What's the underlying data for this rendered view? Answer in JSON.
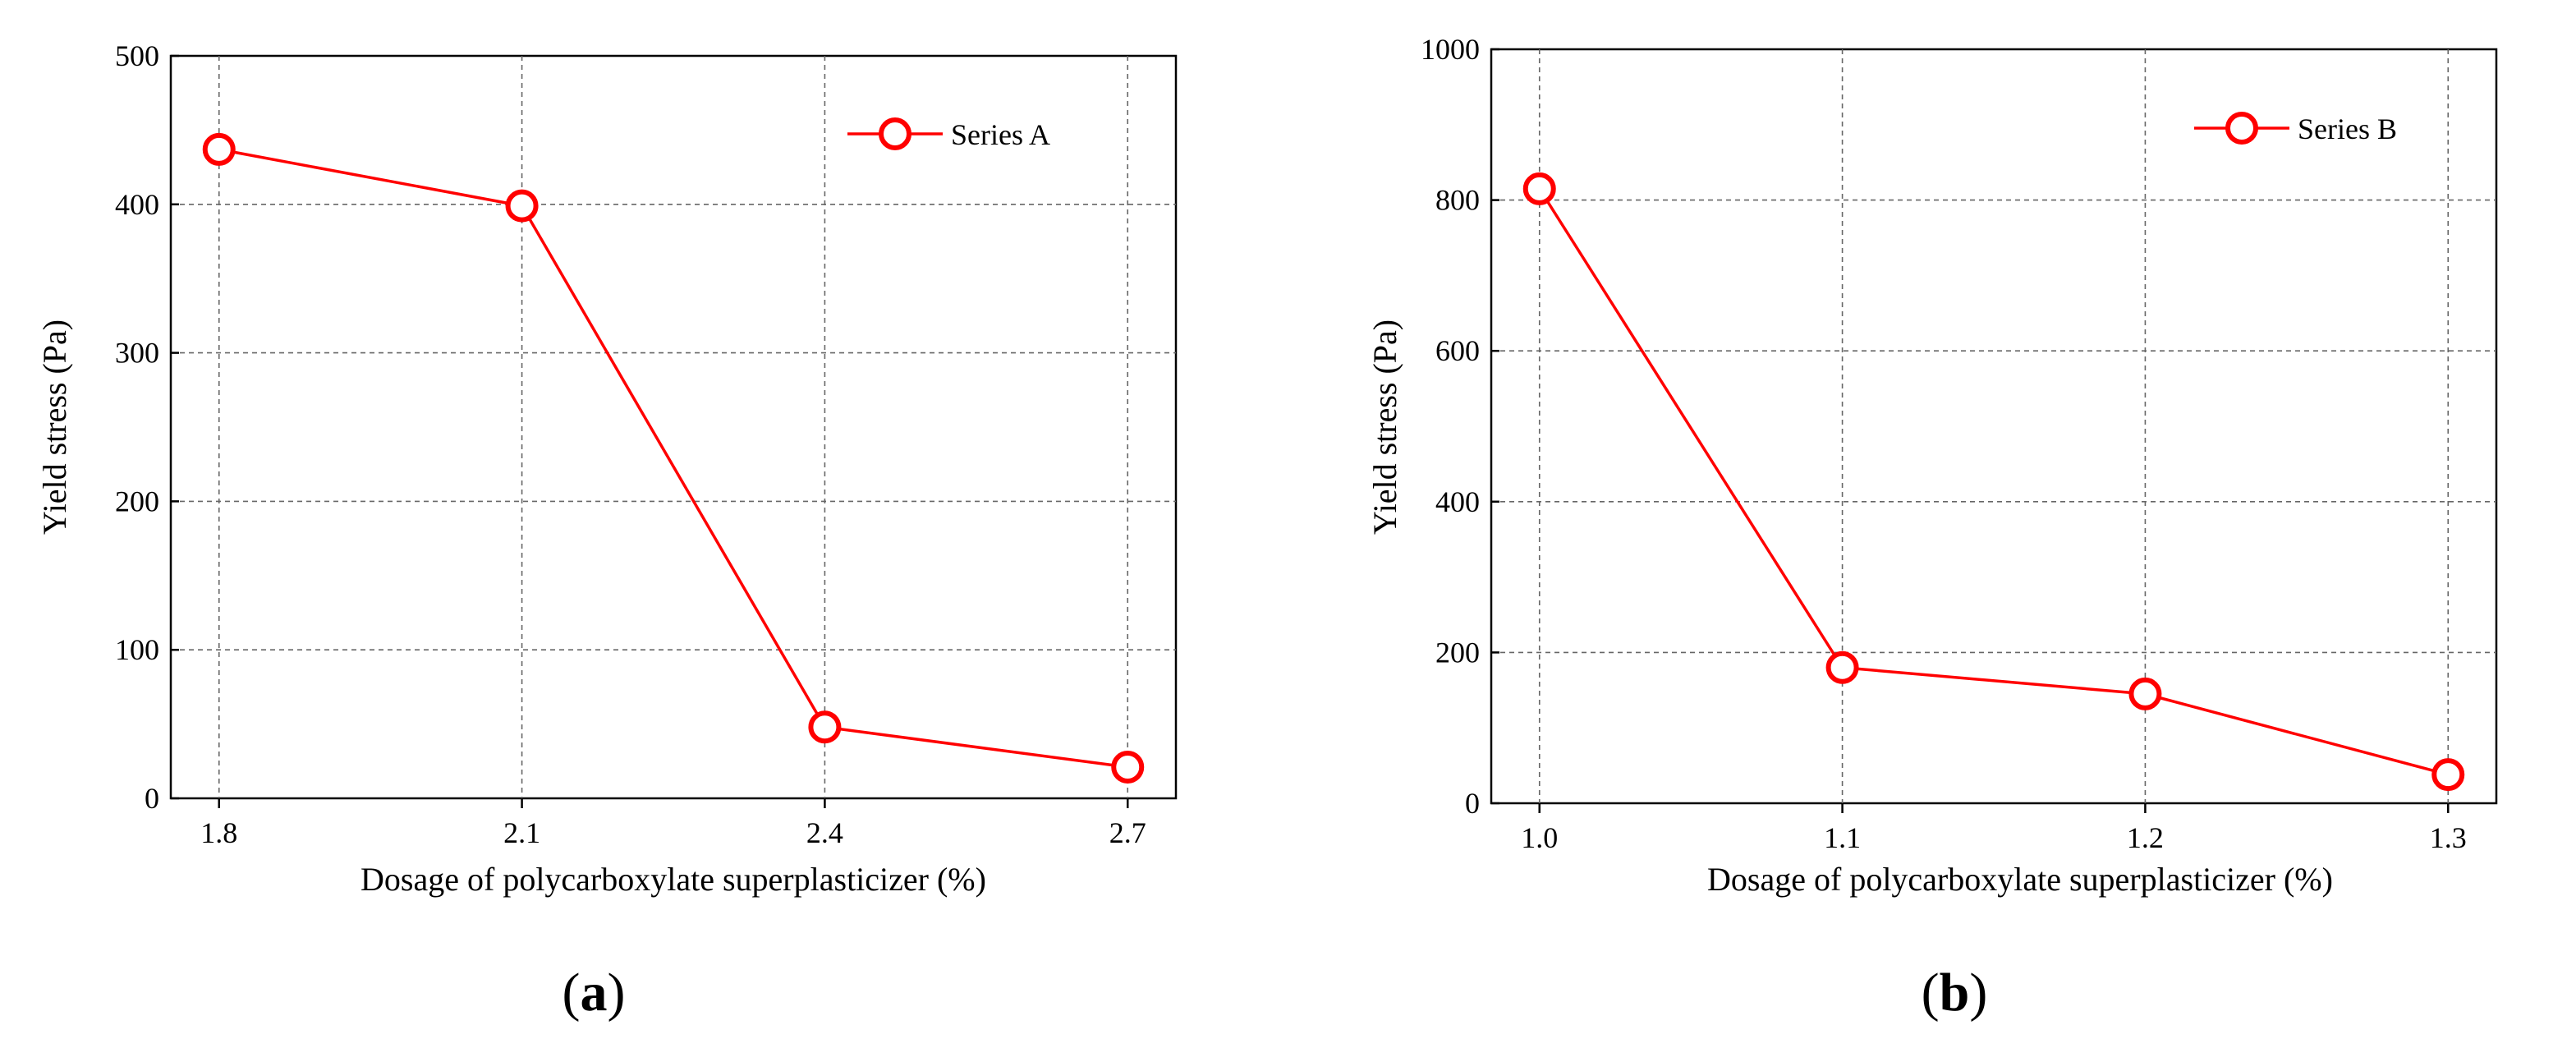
{
  "chart_data": [
    {
      "type": "line",
      "panel_label": "a",
      "x_ticks": [
        "1.8",
        "2.1",
        "2.4",
        "2.7"
      ],
      "y_ticks": [
        "0",
        "100",
        "200",
        "300",
        "400",
        "500"
      ],
      "xlim": [
        1.8,
        2.7
      ],
      "ylim": [
        0,
        500
      ],
      "grid": true,
      "xlabel": "Dosage of polycarboxylate superplasticizer (%)",
      "ylabel": "Yield stress (Pa)",
      "legend_position": "top-right",
      "series": [
        {
          "name": "Series A",
          "color": "#ff0000",
          "x": [
            1.8,
            2.1,
            2.4,
            2.7
          ],
          "values": [
            437,
            399,
            48,
            21
          ]
        }
      ]
    },
    {
      "type": "line",
      "panel_label": "b",
      "x_ticks": [
        "1.0",
        "1.1",
        "1.2",
        "1.3"
      ],
      "y_ticks": [
        "0",
        "200",
        "400",
        "600",
        "800",
        "1000"
      ],
      "xlim": [
        1.0,
        1.3
      ],
      "ylim": [
        0,
        1000
      ],
      "grid": true,
      "xlabel": "Dosage of polycarboxylate superplasticizer (%)",
      "ylabel": "Yield stress (Pa)",
      "legend_position": "top-right",
      "series": [
        {
          "name": "Series B",
          "color": "#ff0000",
          "x": [
            1.0,
            1.1,
            1.2,
            1.3
          ],
          "values": [
            815,
            180,
            145,
            38
          ]
        }
      ]
    }
  ]
}
